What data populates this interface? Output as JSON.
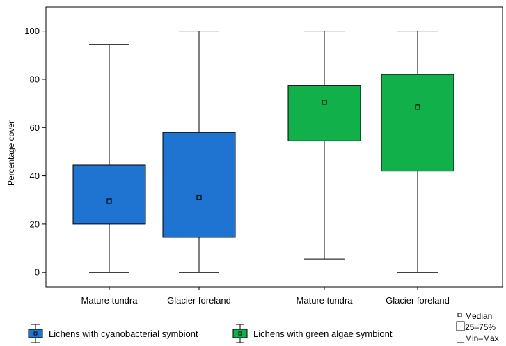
{
  "chart_data": {
    "type": "boxplot",
    "title": "",
    "xlabel": "",
    "ylabel": "Percentage cover",
    "ylim": [
      -6,
      110
    ],
    "yticks": [
      0,
      20,
      40,
      60,
      80,
      100
    ],
    "grid": false,
    "categories": [
      "Mature tundra",
      "Glacier foreland",
      "Mature tundra",
      "Glacier foreland"
    ],
    "series": [
      {
        "name": "Lichens with cyanobacterial symbiont",
        "color": "#1F74D1",
        "boxes": [
          {
            "category": "Mature tundra",
            "min": 0,
            "q1": 20,
            "median": 29.5,
            "q3": 44.5,
            "max": 94.5
          },
          {
            "category": "Glacier foreland",
            "min": 0,
            "q1": 14.5,
            "median": 31,
            "q3": 58,
            "max": 100
          }
        ]
      },
      {
        "name": "Lichens with green algae symbiont",
        "color": "#12B04A",
        "boxes": [
          {
            "category": "Mature tundra",
            "min": 5.5,
            "q1": 54.5,
            "median": 70.5,
            "q3": 77.5,
            "max": 100
          },
          {
            "category": "Glacier foreland",
            "min": 0,
            "q1": 42,
            "median": 68.5,
            "q3": 82,
            "max": 100
          }
        ]
      }
    ],
    "legend": {
      "placement": "bottom",
      "stats": [
        "Median",
        "25–75%",
        "Min–Max"
      ]
    }
  }
}
